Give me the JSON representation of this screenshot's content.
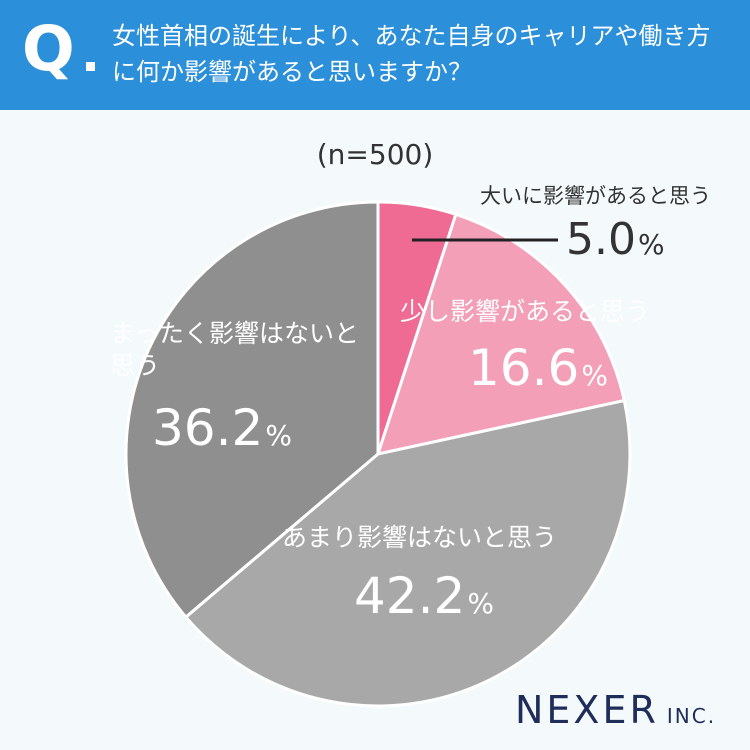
{
  "header": {
    "q_label": "Q",
    "question": "女性首相の誕生により、あなた自身のキャリアや働き方に何か影響があると思いますか？"
  },
  "chart_data": {
    "type": "pie",
    "sample": "(n=500)",
    "unit": "%",
    "slices": [
      {
        "label": "大いに影響があると思う",
        "value": 5.0,
        "value_text": "5.0",
        "color": "#ef6b93",
        "label_color": "#333333"
      },
      {
        "label": "少し影響があると思う",
        "value": 16.6,
        "value_text": "16.6",
        "color": "#f39fb7",
        "label_color": "#ffffff"
      },
      {
        "label": "あまり影響はないと思う",
        "value": 42.2,
        "value_text": "42.2",
        "color": "#a8a8a8",
        "label_color": "#ffffff"
      },
      {
        "label": "まったく影響はないと思う",
        "value": 36.2,
        "value_text": "36.2",
        "color": "#8f8f8f",
        "label_color": "#ffffff"
      }
    ]
  },
  "brand": {
    "name": "NEXER",
    "suffix": "INC.",
    "color": "#1f2d5a"
  }
}
